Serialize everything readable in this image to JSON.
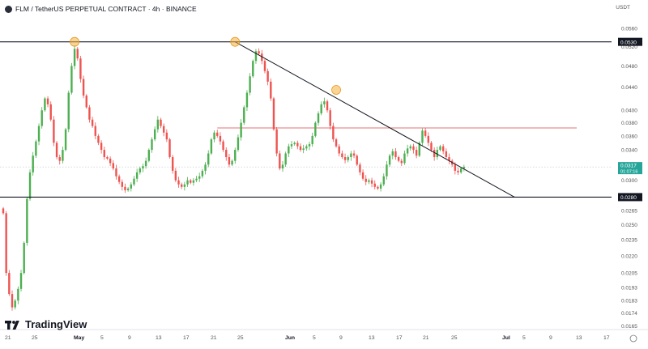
{
  "header": {
    "title": "FLM / TetherUS PERPETUAL CONTRACT · 4h · BINANCE",
    "unit": "USDT"
  },
  "brand": {
    "name": "TradingView"
  },
  "colors": {
    "up": "#26a69a",
    "down": "#ef5350",
    "upBar": "#4caf50",
    "resistance": "#e57373",
    "trendline": "#131722",
    "highlight": "#f5b041",
    "lastPrice": "#26a69a",
    "axisText": "#555555"
  },
  "chart_data": {
    "type": "line",
    "title": "FLM / TetherUS PERPETUAL CONTRACT · 4h · BINANCE",
    "y_axis": {
      "scale": "log",
      "tick_labels": [
        "0.0560",
        "0.0520",
        "0.0480",
        "0.0440",
        "0.0400",
        "0.0380",
        "0.0360",
        "0.0340",
        "0.0320",
        "0.0300",
        "0.0280",
        "0.0265",
        "0.0250",
        "0.0235",
        "0.0220",
        "0.0205",
        "0.0193",
        "0.0183",
        "0.0174",
        "0.0165"
      ],
      "tick_values": [
        0.056,
        0.052,
        0.048,
        0.044,
        0.04,
        0.038,
        0.036,
        0.034,
        0.032,
        0.03,
        0.028,
        0.0265,
        0.025,
        0.0235,
        0.022,
        0.0205,
        0.0193,
        0.0183,
        0.0174,
        0.0165
      ],
      "ylim": [
        0.0163,
        0.0585
      ]
    },
    "x_axis": {
      "tick_labels": [
        "21",
        "25",
        "May",
        "5",
        "9",
        "13",
        "17",
        "21",
        "25",
        "Jun",
        "5",
        "9",
        "13",
        "17",
        "21",
        "25",
        "Jul",
        "5",
        "9",
        "13",
        "17"
      ],
      "bold_labels": [
        "May",
        "Jun",
        "Jul"
      ]
    },
    "series": [
      {
        "values": [
          0.0262,
          0.0205,
          0.0188,
          0.0178,
          0.0183,
          0.0192,
          0.0205,
          0.0232,
          0.0278,
          0.031,
          0.0332,
          0.0352,
          0.0375,
          0.04,
          0.042,
          0.041,
          0.0385,
          0.035,
          0.033,
          0.0325,
          0.034,
          0.037,
          0.043,
          0.048,
          0.0515,
          0.0495,
          0.0455,
          0.0425,
          0.0405,
          0.0385,
          0.0375,
          0.036,
          0.035,
          0.034,
          0.033,
          0.0328,
          0.0322,
          0.0315,
          0.0305,
          0.0298,
          0.0292,
          0.0288,
          0.029,
          0.0295,
          0.0302,
          0.031,
          0.0315,
          0.0318,
          0.0325,
          0.034,
          0.0355,
          0.037,
          0.0385,
          0.0375,
          0.0365,
          0.0355,
          0.033,
          0.0312,
          0.03,
          0.0295,
          0.0292,
          0.0295,
          0.03,
          0.0297,
          0.03,
          0.0302,
          0.0305,
          0.0312,
          0.032,
          0.0335,
          0.0355,
          0.0365,
          0.036,
          0.0352,
          0.034,
          0.033,
          0.032,
          0.0325,
          0.034,
          0.0358,
          0.038,
          0.0405,
          0.043,
          0.046,
          0.049,
          0.051,
          0.0505,
          0.049,
          0.047,
          0.045,
          0.042,
          0.037,
          0.0335,
          0.0315,
          0.032,
          0.0335,
          0.0345,
          0.0348,
          0.035,
          0.0345,
          0.034,
          0.0342,
          0.0345,
          0.0348,
          0.036,
          0.038,
          0.0395,
          0.041,
          0.0415,
          0.04,
          0.0375,
          0.0355,
          0.0345,
          0.0335,
          0.033,
          0.0326,
          0.033,
          0.0335,
          0.0332,
          0.032,
          0.031,
          0.0302,
          0.0298,
          0.03,
          0.0296,
          0.0292,
          0.029,
          0.0295,
          0.0305,
          0.032,
          0.0332,
          0.0338,
          0.033,
          0.0325,
          0.0322,
          0.0335,
          0.0342,
          0.0345,
          0.034,
          0.0332,
          0.035,
          0.0368,
          0.036,
          0.035,
          0.034,
          0.033,
          0.034,
          0.0345,
          0.0338,
          0.033,
          0.0325,
          0.032,
          0.0312,
          0.031,
          0.0315,
          0.0317
        ]
      }
    ],
    "annotations": {
      "horizontal_lines": [
        {
          "value": 0.053,
          "label": "0.0530"
        },
        {
          "value": 0.028,
          "label": "0.0280"
        },
        {
          "value": 0.0372,
          "label": ""
        }
      ],
      "trendline": {
        "start_index": 78,
        "start_value": 0.053,
        "end_index": 172,
        "end_value": 0.028
      },
      "highlight_points": [
        {
          "index": 24,
          "value": 0.053
        },
        {
          "index": 78,
          "value": 0.053
        },
        {
          "index": 112,
          "value": 0.0435
        }
      ],
      "last_price": {
        "value": 0.0317,
        "label": "0.0317",
        "countdown": "01:07:16"
      }
    }
  }
}
